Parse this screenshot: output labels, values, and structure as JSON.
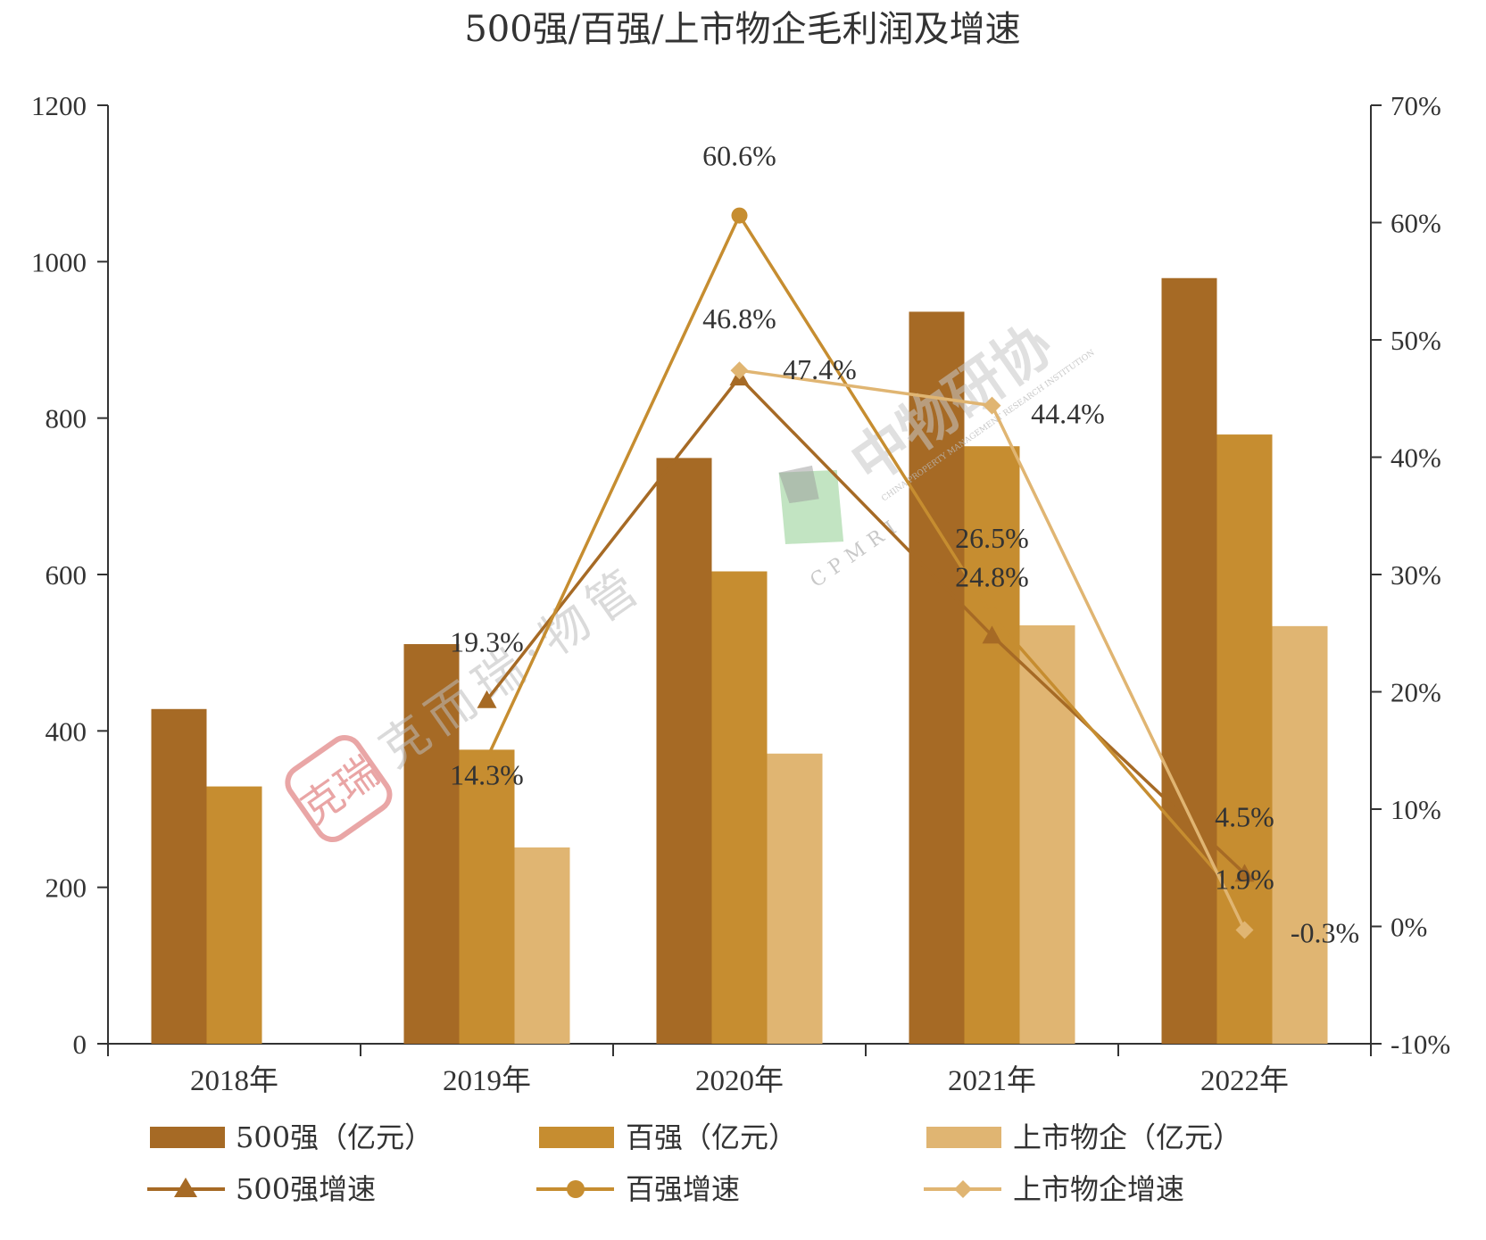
{
  "colors": {
    "s500": "#A66A25",
    "s100": "#C68D30",
    "listed": "#E0B572",
    "axis": "#333333",
    "text": "#333333"
  },
  "chart_data": {
    "type": "bar",
    "title": "500强/百强/上市物企毛利润及增速",
    "categories": [
      "2018年",
      "2019年",
      "2020年",
      "2021年",
      "2022年"
    ],
    "ylim": [
      0,
      1200
    ],
    "y2lim": [
      -10,
      70
    ],
    "yticks": [
      "0",
      "200",
      "400",
      "600",
      "800",
      "1000",
      "1200"
    ],
    "y2ticks": [
      "-10%",
      "0%",
      "10%",
      "20%",
      "30%",
      "40%",
      "50%",
      "60%",
      "70%"
    ],
    "bar_series": [
      {
        "name": "500强（亿元）",
        "color_key": "s500",
        "values": [
          428,
          511,
          749,
          936,
          979
        ]
      },
      {
        "name": "百强（亿元）",
        "color_key": "s100",
        "values": [
          329,
          376,
          604,
          764,
          779
        ]
      },
      {
        "name": "上市物企（亿元）",
        "color_key": "listed",
        "values": [
          null,
          251,
          371,
          535,
          534
        ]
      }
    ],
    "line_series": [
      {
        "name": "500强增速",
        "color_key": "s500",
        "marker": "triangle",
        "values": [
          null,
          19.3,
          46.8,
          24.8,
          4.5
        ],
        "labels": [
          "",
          "19.3%",
          "46.8%",
          "24.8%",
          "4.5%"
        ]
      },
      {
        "name": "百强增速",
        "color_key": "s100",
        "marker": "circle",
        "values": [
          null,
          14.3,
          60.6,
          26.5,
          1.9
        ],
        "labels": [
          "",
          "14.3%",
          "60.6%",
          "26.5%",
          "1.9%"
        ]
      },
      {
        "name": "上市物企增速",
        "color_key": "listed",
        "marker": "diamond",
        "values": [
          null,
          null,
          47.4,
          44.4,
          -0.3
        ],
        "labels": [
          "",
          "",
          "47.4%",
          "44.4%",
          "-0.3%"
        ]
      }
    ]
  },
  "legend": {
    "bar_500": "500强（亿元）",
    "bar_100": "百强（亿元）",
    "bar_listed": "上市物企（亿元）",
    "line_500": "500强增速",
    "line_100": "百强增速",
    "line_listed": "上市物企增速"
  },
  "watermarks": {
    "cpmri_cn": "中物研协",
    "cpmri_abbr": "CPMRI",
    "cpmri_en": "CHINA PROPERTY MANAGEMENT RESEARCH INSTITUTION",
    "kr": "克而瑞·物管",
    "kr_seal": "克瑞"
  }
}
